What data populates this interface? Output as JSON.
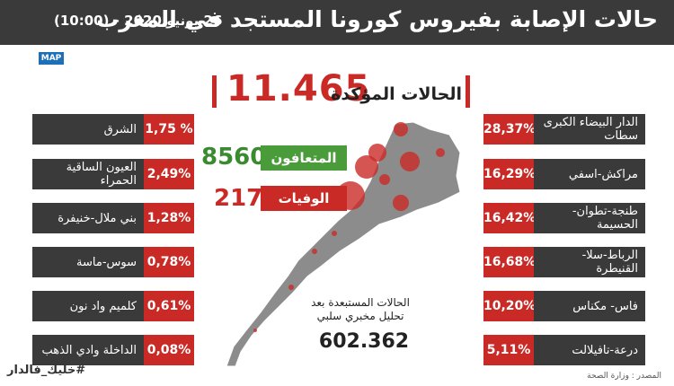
{
  "header": {
    "title": "حالات الإصابة بفيروس كورونا المستجد في المغرب",
    "date": "26 يونيو 2020 - (10:00)"
  },
  "logo": {
    "text": "MAP"
  },
  "confirmed": {
    "value": "11.465",
    "label": "الحالات المؤكدة"
  },
  "recovered": {
    "value": "8560",
    "label": "المتعافون"
  },
  "deaths": {
    "value": "217",
    "label": "الوفيات"
  },
  "excluded": {
    "label": "الحالات المستبعدة بعد تحليل مخبري سلبي",
    "value": "602.362"
  },
  "regions_left": [
    {
      "name": "الشرق",
      "pct": "1,75 %"
    },
    {
      "name": "العيون الساقية الحمراء",
      "pct": "2,49%"
    },
    {
      "name": "بني ملال-خنيفرة",
      "pct": "1,28%"
    },
    {
      "name": "سوس-ماسة",
      "pct": "0,78%"
    },
    {
      "name": "كلميم واد نون",
      "pct": "0,61%"
    },
    {
      "name": "الداخلة وادي الذهب",
      "pct": "0,08%"
    }
  ],
  "regions_right": [
    {
      "name": "الدار البيضاء الكبرى سطات",
      "pct": "28,37%"
    },
    {
      "name": "مراكش-اسفي",
      "pct": "16,29%"
    },
    {
      "name": "طنجة-تطوان-الحسيمة",
      "pct": "16,42%"
    },
    {
      "name": "الرباط-سلا-القنيطرة",
      "pct": "16,68%"
    },
    {
      "name": "فاس- مكناس",
      "pct": "10,20%"
    },
    {
      "name": "درعة-تافيلالت",
      "pct": "5,11%"
    }
  ],
  "hashtag": "#خليك_فالدار",
  "source": "المصدر : وزارة الصحة",
  "colors": {
    "accent_red": "#c92a26",
    "dark": "#3a3a3a",
    "green": "#4a9b3a",
    "map_gray": "#8c8c8c"
  }
}
